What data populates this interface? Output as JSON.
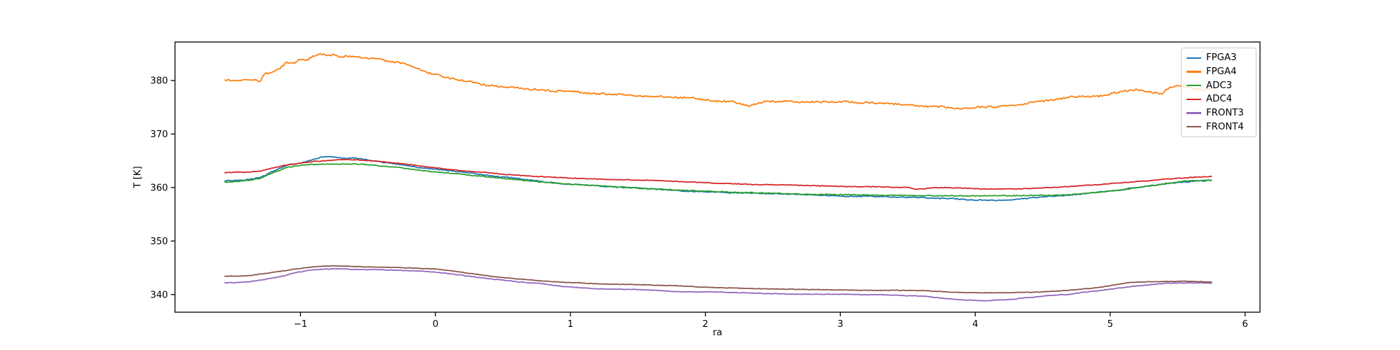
{
  "chart_data": {
    "type": "line",
    "title": "",
    "xlabel": "ra",
    "ylabel": "T [K]",
    "xlim": [
      -1.93,
      6.11
    ],
    "ylim": [
      336.7,
      387.2
    ],
    "xticks": [
      -1,
      0,
      1,
      2,
      3,
      4,
      5,
      6
    ],
    "yticks": [
      340,
      350,
      360,
      370,
      380
    ],
    "grid": false,
    "legend_position": "upper right",
    "x_data_range": [
      -1.56,
      5.75
    ],
    "series": [
      {
        "name": "FPGA3",
        "color": "#1f77b4",
        "noise": 0.12,
        "points": [
          [
            -1.56,
            361.3
          ],
          [
            -1.4,
            361.5
          ],
          [
            -1.3,
            361.9
          ],
          [
            -1.25,
            362.5
          ],
          [
            -1.2,
            363.2
          ],
          [
            -1.1,
            364.3
          ],
          [
            -1.0,
            364.6
          ],
          [
            -0.9,
            365.3
          ],
          [
            -0.85,
            365.7
          ],
          [
            -0.78,
            365.8
          ],
          [
            -0.7,
            365.5
          ],
          [
            -0.6,
            365.4
          ],
          [
            -0.5,
            365.2
          ],
          [
            -0.4,
            364.8
          ],
          [
            -0.3,
            364.4
          ],
          [
            -0.2,
            364.0
          ],
          [
            -0.1,
            363.6
          ],
          [
            0.0,
            363.3
          ],
          [
            0.2,
            362.8
          ],
          [
            0.4,
            362.2
          ],
          [
            0.6,
            361.6
          ],
          [
            0.8,
            361.0
          ],
          [
            0.93,
            360.7
          ],
          [
            1.2,
            360.2
          ],
          [
            1.5,
            359.8
          ],
          [
            1.8,
            359.3
          ],
          [
            2.1,
            359.0
          ],
          [
            2.4,
            358.8
          ],
          [
            2.7,
            358.6
          ],
          [
            3.0,
            358.4
          ],
          [
            3.3,
            358.3
          ],
          [
            3.6,
            358.2
          ],
          [
            3.8,
            358.0
          ],
          [
            4.0,
            357.7
          ],
          [
            4.15,
            357.6
          ],
          [
            4.3,
            357.8
          ],
          [
            4.5,
            358.2
          ],
          [
            4.7,
            358.7
          ],
          [
            4.9,
            359.2
          ],
          [
            5.1,
            359.7
          ],
          [
            5.3,
            360.3
          ],
          [
            5.45,
            360.9
          ],
          [
            5.6,
            361.2
          ],
          [
            5.75,
            361.5
          ]
        ]
      },
      {
        "name": "FPGA4",
        "color": "#ff7f0e",
        "noise": 0.22,
        "points": [
          [
            -1.56,
            380.1
          ],
          [
            -1.45,
            379.9
          ],
          [
            -1.38,
            380.3
          ],
          [
            -1.3,
            380.0
          ],
          [
            -1.27,
            381.3
          ],
          [
            -1.22,
            381.6
          ],
          [
            -1.15,
            382.3
          ],
          [
            -1.1,
            383.4
          ],
          [
            -1.05,
            383.2
          ],
          [
            -1.0,
            383.9
          ],
          [
            -0.95,
            383.8
          ],
          [
            -0.9,
            384.6
          ],
          [
            -0.85,
            385.0
          ],
          [
            -0.8,
            384.7
          ],
          [
            -0.75,
            384.9
          ],
          [
            -0.7,
            384.5
          ],
          [
            -0.6,
            384.6
          ],
          [
            -0.5,
            384.3
          ],
          [
            -0.45,
            384.4
          ],
          [
            -0.35,
            383.8
          ],
          [
            -0.25,
            383.4
          ],
          [
            -0.15,
            382.5
          ],
          [
            -0.05,
            381.5
          ],
          [
            0.0,
            381.2
          ],
          [
            0.1,
            380.6
          ],
          [
            0.25,
            379.8
          ],
          [
            0.4,
            379.0
          ],
          [
            0.5,
            378.7
          ],
          [
            0.7,
            378.2
          ],
          [
            0.9,
            377.9
          ],
          [
            1.2,
            377.5
          ],
          [
            1.5,
            377.0
          ],
          [
            1.8,
            376.7
          ],
          [
            2.0,
            376.4
          ],
          [
            2.2,
            375.9
          ],
          [
            2.33,
            375.2
          ],
          [
            2.45,
            376.1
          ],
          [
            2.7,
            376.1
          ],
          [
            3.0,
            375.9
          ],
          [
            3.3,
            375.6
          ],
          [
            3.6,
            375.3
          ],
          [
            3.9,
            375.0
          ],
          [
            4.1,
            375.1
          ],
          [
            4.3,
            375.3
          ],
          [
            4.5,
            376.3
          ],
          [
            4.7,
            377.0
          ],
          [
            4.9,
            377.2
          ],
          [
            5.1,
            378.2
          ],
          [
            5.2,
            378.4
          ],
          [
            5.3,
            378.0
          ],
          [
            5.38,
            377.6
          ],
          [
            5.45,
            378.8
          ],
          [
            5.55,
            378.9
          ],
          [
            5.65,
            378.4
          ],
          [
            5.75,
            378.7
          ]
        ]
      },
      {
        "name": "ADC3",
        "color": "#2ca02c",
        "noise": 0.1,
        "points": [
          [
            -1.56,
            361.0
          ],
          [
            -1.4,
            361.2
          ],
          [
            -1.3,
            361.6
          ],
          [
            -1.2,
            362.8
          ],
          [
            -1.1,
            363.8
          ],
          [
            -1.0,
            364.2
          ],
          [
            -0.9,
            364.4
          ],
          [
            -0.8,
            364.5
          ],
          [
            -0.7,
            364.4
          ],
          [
            -0.55,
            364.3
          ],
          [
            -0.4,
            364.0
          ],
          [
            -0.25,
            363.6
          ],
          [
            -0.1,
            363.1
          ],
          [
            0.0,
            362.8
          ],
          [
            0.2,
            362.4
          ],
          [
            0.4,
            361.9
          ],
          [
            0.6,
            361.4
          ],
          [
            0.8,
            360.9
          ],
          [
            1.0,
            360.6
          ],
          [
            1.3,
            360.2
          ],
          [
            1.6,
            359.8
          ],
          [
            1.9,
            359.5
          ],
          [
            2.2,
            359.2
          ],
          [
            2.5,
            359.0
          ],
          [
            2.8,
            358.8
          ],
          [
            3.1,
            358.7
          ],
          [
            3.4,
            358.6
          ],
          [
            3.7,
            358.5
          ],
          [
            4.0,
            358.4
          ],
          [
            4.3,
            358.4
          ],
          [
            4.6,
            358.5
          ],
          [
            4.8,
            358.8
          ],
          [
            5.0,
            359.3
          ],
          [
            5.2,
            359.9
          ],
          [
            5.4,
            360.6
          ],
          [
            5.55,
            361.1
          ],
          [
            5.75,
            361.3
          ]
        ]
      },
      {
        "name": "ADC4",
        "color": "#d62728",
        "noise": 0.09,
        "points": [
          [
            -1.56,
            362.8
          ],
          [
            -1.4,
            362.8
          ],
          [
            -1.3,
            363.0
          ],
          [
            -1.2,
            363.6
          ],
          [
            -1.1,
            364.2
          ],
          [
            -1.0,
            364.5
          ],
          [
            -0.9,
            364.8
          ],
          [
            -0.8,
            365.0
          ],
          [
            -0.7,
            365.2
          ],
          [
            -0.6,
            365.1
          ],
          [
            -0.5,
            365.0
          ],
          [
            -0.35,
            364.7
          ],
          [
            -0.2,
            364.3
          ],
          [
            -0.05,
            363.8
          ],
          [
            0.1,
            363.4
          ],
          [
            0.3,
            362.9
          ],
          [
            0.5,
            362.5
          ],
          [
            0.7,
            362.2
          ],
          [
            0.93,
            361.9
          ],
          [
            1.2,
            361.6
          ],
          [
            1.5,
            361.3
          ],
          [
            1.8,
            361.1
          ],
          [
            2.1,
            360.8
          ],
          [
            2.4,
            360.6
          ],
          [
            2.7,
            360.5
          ],
          [
            3.0,
            360.3
          ],
          [
            3.3,
            360.2
          ],
          [
            3.5,
            360.1
          ],
          [
            3.57,
            359.7
          ],
          [
            3.7,
            360.0
          ],
          [
            3.9,
            359.9
          ],
          [
            4.1,
            359.8
          ],
          [
            4.3,
            359.8
          ],
          [
            4.5,
            360.0
          ],
          [
            4.7,
            360.3
          ],
          [
            4.9,
            360.6
          ],
          [
            5.1,
            361.0
          ],
          [
            5.3,
            361.4
          ],
          [
            5.5,
            361.8
          ],
          [
            5.65,
            362.0
          ],
          [
            5.75,
            362.1
          ]
        ]
      },
      {
        "name": "FRONT3",
        "color": "#9467bd",
        "noise": 0.07,
        "points": [
          [
            -1.56,
            342.2
          ],
          [
            -1.4,
            342.3
          ],
          [
            -1.3,
            342.6
          ],
          [
            -1.24,
            342.9
          ],
          [
            -1.15,
            343.3
          ],
          [
            -1.05,
            344.0
          ],
          [
            -0.95,
            344.4
          ],
          [
            -0.85,
            344.7
          ],
          [
            -0.75,
            344.8
          ],
          [
            -0.6,
            344.7
          ],
          [
            -0.45,
            344.7
          ],
          [
            -0.3,
            344.6
          ],
          [
            -0.15,
            344.5
          ],
          [
            0.0,
            344.2
          ],
          [
            0.2,
            343.6
          ],
          [
            0.41,
            342.9
          ],
          [
            0.6,
            342.4
          ],
          [
            0.8,
            342.0
          ],
          [
            0.93,
            341.5
          ],
          [
            1.2,
            341.0
          ],
          [
            1.5,
            340.9
          ],
          [
            1.79,
            340.5
          ],
          [
            2.1,
            340.4
          ],
          [
            2.4,
            340.2
          ],
          [
            2.66,
            340.0
          ],
          [
            3.0,
            340.0
          ],
          [
            3.3,
            339.9
          ],
          [
            3.62,
            339.7
          ],
          [
            3.9,
            339.0
          ],
          [
            4.1,
            338.9
          ],
          [
            4.3,
            339.2
          ],
          [
            4.49,
            339.7
          ],
          [
            4.7,
            340.1
          ],
          [
            4.83,
            340.5
          ],
          [
            5.0,
            341.0
          ],
          [
            5.14,
            341.5
          ],
          [
            5.25,
            341.7
          ],
          [
            5.4,
            342.1
          ],
          [
            5.55,
            342.2
          ],
          [
            5.75,
            342.2
          ]
        ]
      },
      {
        "name": "FRONT4",
        "color": "#8c564b",
        "noise": 0.06,
        "points": [
          [
            -1.56,
            343.4
          ],
          [
            -1.4,
            343.5
          ],
          [
            -1.3,
            343.8
          ],
          [
            -1.24,
            344.0
          ],
          [
            -1.15,
            344.3
          ],
          [
            -1.05,
            344.7
          ],
          [
            -0.95,
            345.0
          ],
          [
            -0.85,
            345.2
          ],
          [
            -0.75,
            345.3
          ],
          [
            -0.6,
            345.2
          ],
          [
            -0.45,
            345.1
          ],
          [
            -0.3,
            345.0
          ],
          [
            -0.15,
            344.9
          ],
          [
            0.0,
            344.8
          ],
          [
            0.2,
            344.2
          ],
          [
            0.41,
            343.4
          ],
          [
            0.6,
            342.9
          ],
          [
            0.8,
            342.5
          ],
          [
            0.93,
            342.3
          ],
          [
            1.2,
            342.0
          ],
          [
            1.5,
            341.8
          ],
          [
            1.79,
            341.6
          ],
          [
            2.1,
            341.3
          ],
          [
            2.4,
            341.1
          ],
          [
            2.66,
            341.0
          ],
          [
            3.0,
            340.9
          ],
          [
            3.3,
            340.8
          ],
          [
            3.62,
            340.7
          ],
          [
            3.9,
            340.3
          ],
          [
            4.1,
            340.3
          ],
          [
            4.3,
            340.4
          ],
          [
            4.49,
            340.5
          ],
          [
            4.7,
            340.8
          ],
          [
            4.83,
            341.1
          ],
          [
            5.0,
            341.7
          ],
          [
            5.14,
            342.3
          ],
          [
            5.25,
            342.4
          ],
          [
            5.4,
            342.5
          ],
          [
            5.55,
            342.5
          ],
          [
            5.75,
            342.4
          ]
        ]
      }
    ]
  },
  "colors": {
    "background": "#ffffff",
    "spine": "#000000",
    "tick_text": "#000000",
    "legend_border": "#cccccc"
  }
}
